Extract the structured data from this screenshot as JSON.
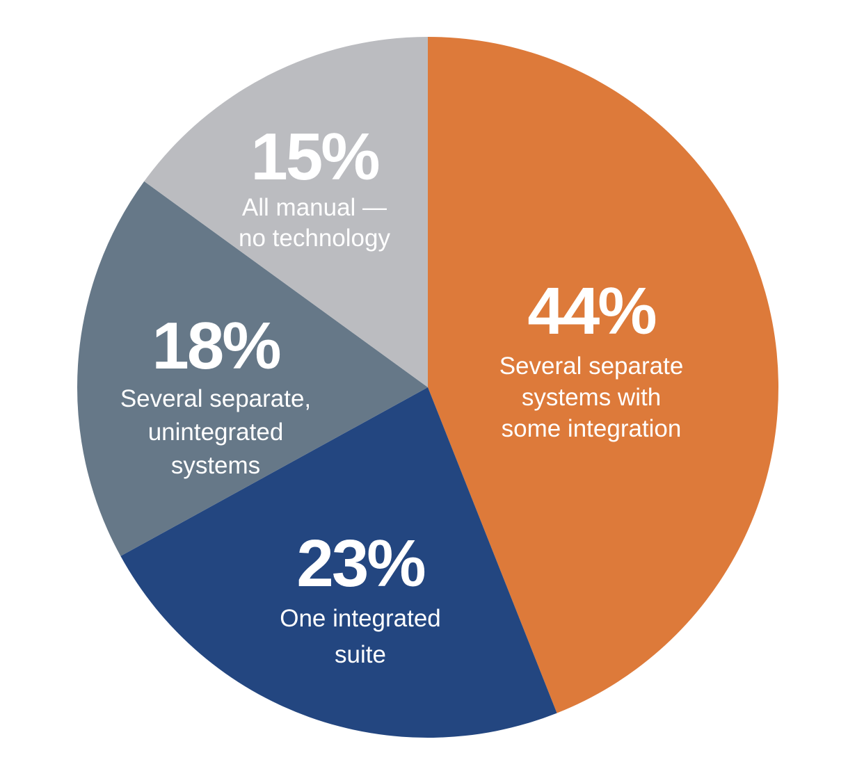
{
  "chart_data": {
    "type": "pie",
    "start_angle_deg": 0,
    "direction": "clockwise",
    "slices": [
      {
        "value": 44,
        "pct_label": "44%",
        "label_lines": [
          "Several separate",
          "systems with",
          "some integration"
        ],
        "color": "#DD7A3A"
      },
      {
        "value": 23,
        "pct_label": "23%",
        "label_lines": [
          "One integrated",
          "suite"
        ],
        "color": "#234680"
      },
      {
        "value": 18,
        "pct_label": "18%",
        "label_lines": [
          "Several separate,",
          "unintegrated",
          "systems"
        ],
        "color": "#667888"
      },
      {
        "value": 15,
        "pct_label": "15%",
        "label_lines": [
          "All manual —",
          "no technology"
        ],
        "color": "#BBBCC0"
      }
    ]
  }
}
